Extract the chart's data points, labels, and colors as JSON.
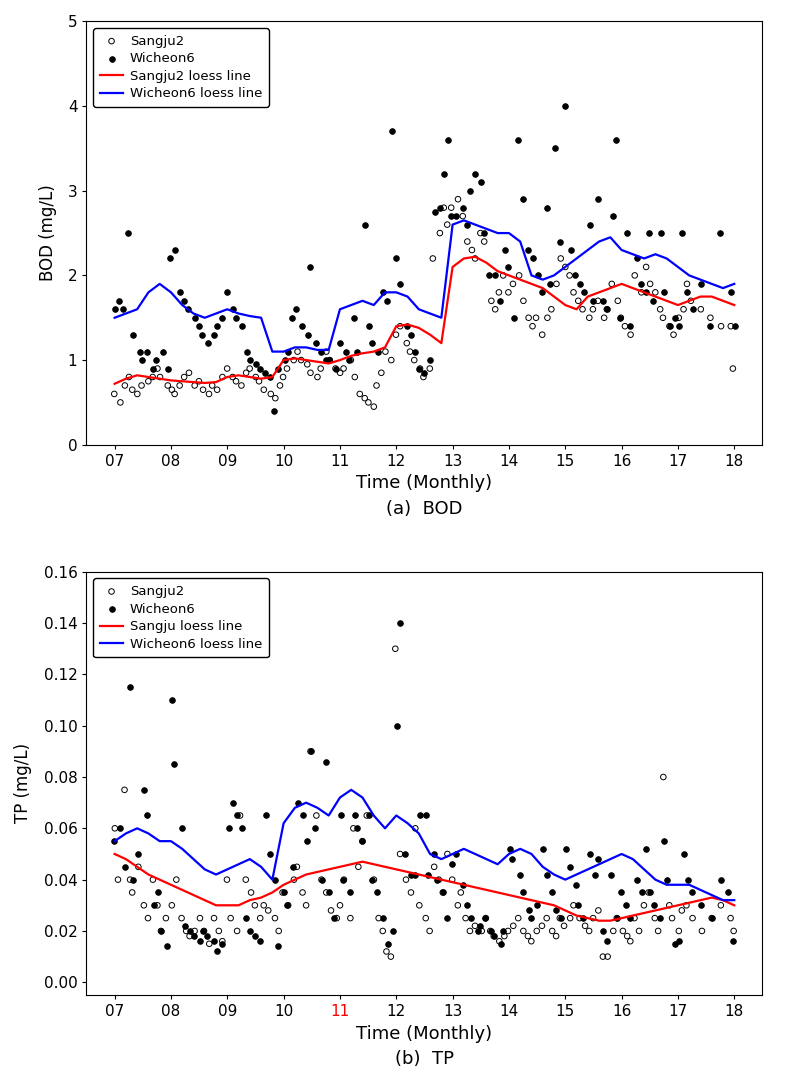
{
  "bod_sangju2_x": [
    7.0,
    7.08,
    7.17,
    7.25,
    7.33,
    7.42,
    7.5,
    7.58,
    7.67,
    7.75,
    7.83,
    7.92,
    8.0,
    8.08,
    8.17,
    8.25,
    8.33,
    8.42,
    8.5,
    8.58,
    8.67,
    8.75,
    8.83,
    8.92,
    9.0,
    9.08,
    9.17,
    9.25,
    9.33,
    9.42,
    9.5,
    9.58,
    9.67,
    9.75,
    9.83,
    9.92,
    10.0,
    10.08,
    10.17,
    10.25,
    10.33,
    10.42,
    10.5,
    10.58,
    10.67,
    10.75,
    10.83,
    10.92,
    11.0,
    11.08,
    11.17,
    11.25,
    11.33,
    11.42,
    11.5,
    11.58,
    11.67,
    11.75,
    11.83,
    11.92,
    12.0,
    12.08,
    12.17,
    12.25,
    12.33,
    12.42,
    12.5,
    12.58,
    12.67,
    12.75,
    12.83,
    12.92,
    13.0,
    13.08,
    13.17,
    13.25,
    13.33,
    13.42,
    13.5,
    13.58,
    13.67,
    13.75,
    13.83,
    13.92,
    14.0,
    14.08,
    14.17,
    14.25,
    14.33,
    14.42,
    14.5,
    14.58,
    14.67,
    14.75,
    14.83,
    14.92,
    15.0,
    15.08,
    15.17,
    15.25,
    15.33,
    15.42,
    15.5,
    15.58,
    15.67,
    15.75,
    15.83,
    15.92,
    16.0,
    16.08,
    16.17,
    16.25,
    16.33,
    16.42,
    16.5,
    16.58,
    16.67,
    16.75,
    16.83,
    16.92,
    17.0,
    17.08,
    17.17,
    17.25,
    17.42,
    17.58,
    17.75,
    17.92,
    18.0
  ],
  "bod_sangju2_y": [
    0.6,
    0.5,
    0.7,
    0.8,
    0.65,
    0.6,
    0.7,
    0.75,
    0.8,
    0.9,
    0.8,
    0.7,
    0.65,
    0.6,
    0.7,
    0.8,
    0.85,
    0.7,
    0.75,
    0.65,
    0.6,
    0.7,
    0.65,
    0.8,
    0.9,
    0.8,
    0.75,
    0.7,
    0.85,
    0.9,
    0.8,
    0.75,
    0.65,
    0.6,
    0.55,
    0.7,
    0.8,
    0.9,
    1.0,
    1.1,
    1.0,
    0.95,
    0.85,
    0.8,
    0.9,
    1.1,
    1.0,
    0.9,
    0.85,
    0.9,
    1.0,
    0.8,
    0.6,
    0.55,
    0.5,
    0.45,
    0.7,
    0.85,
    1.1,
    1.0,
    1.3,
    1.4,
    1.2,
    1.1,
    1.0,
    0.9,
    0.8,
    0.9,
    2.2,
    2.5,
    2.8,
    2.6,
    2.8,
    2.9,
    2.7,
    2.4,
    2.3,
    2.2,
    2.5,
    2.4,
    1.7,
    1.6,
    1.8,
    2.0,
    1.8,
    1.9,
    2.0,
    1.7,
    1.5,
    1.4,
    1.5,
    1.3,
    1.5,
    1.6,
    1.9,
    2.2,
    2.1,
    2.0,
    1.8,
    1.7,
    1.6,
    1.5,
    1.6,
    1.7,
    1.5,
    1.6,
    1.9,
    1.7,
    1.5,
    1.4,
    1.3,
    2.0,
    1.8,
    2.1,
    1.9,
    1.8,
    1.6,
    1.5,
    1.4,
    1.3,
    1.5,
    1.6,
    1.9,
    1.7,
    1.6,
    1.5,
    1.4,
    1.4,
    0.9
  ],
  "bod_wicheon6_x": [
    7.0,
    7.08,
    7.17,
    7.25,
    7.33,
    7.42,
    7.5,
    7.58,
    7.67,
    7.75,
    7.83,
    7.92,
    8.0,
    8.08,
    8.17,
    8.25,
    8.33,
    8.42,
    8.5,
    8.58,
    8.67,
    8.75,
    8.83,
    8.92,
    9.0,
    9.08,
    9.17,
    9.25,
    9.33,
    9.42,
    9.5,
    9.58,
    9.67,
    9.75,
    9.83,
    9.92,
    10.0,
    10.08,
    10.17,
    10.25,
    10.33,
    10.42,
    10.5,
    10.58,
    10.67,
    10.75,
    10.83,
    10.92,
    11.0,
    11.08,
    11.17,
    11.25,
    11.33,
    11.42,
    11.5,
    11.58,
    11.67,
    11.75,
    11.83,
    11.92,
    12.0,
    12.08,
    12.17,
    12.25,
    12.33,
    12.42,
    12.5,
    12.58,
    12.67,
    12.75,
    12.83,
    12.92,
    13.0,
    13.08,
    13.17,
    13.25,
    13.33,
    13.42,
    13.5,
    13.58,
    13.67,
    13.75,
    13.83,
    13.92,
    14.0,
    14.08,
    14.17,
    14.25,
    14.33,
    14.42,
    14.5,
    14.58,
    14.67,
    14.75,
    14.83,
    14.92,
    15.0,
    15.08,
    15.17,
    15.25,
    15.33,
    15.42,
    15.5,
    15.58,
    15.67,
    15.75,
    15.83,
    15.92,
    16.0,
    16.08,
    16.17,
    16.25,
    16.33,
    16.42,
    16.5,
    16.58,
    16.67,
    16.75,
    16.83,
    16.92,
    17.0,
    17.08,
    17.17,
    17.25,
    17.42,
    17.58,
    17.75,
    17.92,
    18.0
  ],
  "bod_wicheon6_y": [
    1.6,
    1.7,
    1.6,
    2.5,
    1.3,
    1.1,
    1.0,
    1.1,
    0.9,
    1.0,
    1.1,
    0.9,
    2.2,
    2.3,
    1.8,
    1.7,
    1.6,
    1.5,
    1.4,
    1.3,
    1.2,
    1.3,
    1.4,
    1.5,
    1.8,
    1.6,
    1.5,
    1.4,
    1.1,
    1.0,
    0.95,
    0.9,
    0.85,
    0.8,
    0.4,
    0.9,
    1.0,
    1.1,
    1.5,
    1.6,
    1.4,
    1.3,
    2.1,
    1.2,
    1.1,
    1.0,
    1.0,
    0.9,
    1.2,
    1.1,
    1.0,
    1.5,
    1.1,
    2.6,
    1.4,
    1.2,
    1.1,
    1.8,
    1.7,
    3.7,
    2.2,
    1.9,
    1.4,
    1.3,
    1.1,
    0.9,
    0.85,
    1.0,
    2.75,
    2.8,
    3.2,
    3.6,
    2.7,
    2.7,
    2.8,
    2.6,
    3.0,
    3.2,
    3.1,
    2.5,
    2.0,
    2.0,
    1.7,
    2.3,
    2.1,
    1.5,
    3.6,
    2.9,
    2.3,
    2.2,
    2.0,
    1.8,
    2.8,
    1.9,
    3.5,
    2.4,
    4.0,
    2.3,
    2.0,
    1.9,
    1.8,
    2.6,
    1.7,
    2.9,
    1.7,
    1.6,
    2.7,
    3.6,
    1.5,
    2.5,
    1.4,
    2.2,
    1.9,
    1.8,
    2.5,
    1.7,
    2.5,
    1.8,
    1.4,
    1.5,
    1.4,
    2.5,
    1.8,
    1.6,
    1.9,
    1.4,
    2.5,
    1.8,
    1.4
  ],
  "tp_sangju2_x": [
    7.0,
    7.08,
    7.17,
    7.25,
    7.33,
    7.42,
    7.5,
    7.58,
    7.67,
    7.75,
    7.83,
    7.92,
    8.0,
    8.08,
    8.17,
    8.25,
    8.33,
    8.42,
    8.5,
    8.58,
    8.67,
    8.75,
    8.83,
    8.92,
    9.0,
    9.08,
    9.17,
    9.25,
    9.33,
    9.42,
    9.5,
    9.58,
    9.67,
    9.75,
    9.83,
    9.92,
    10.0,
    10.08,
    10.17,
    10.25,
    10.33,
    10.42,
    10.5,
    10.58,
    10.67,
    10.75,
    10.83,
    10.92,
    11.0,
    11.08,
    11.17,
    11.25,
    11.33,
    11.42,
    11.5,
    11.58,
    11.67,
    11.75,
    11.83,
    11.92,
    12.0,
    12.08,
    12.17,
    12.25,
    12.33,
    12.42,
    12.5,
    12.58,
    12.67,
    12.75,
    12.83,
    12.92,
    13.0,
    13.08,
    13.17,
    13.25,
    13.33,
    13.42,
    13.5,
    13.58,
    13.67,
    13.75,
    13.83,
    13.92,
    14.0,
    14.08,
    14.17,
    14.25,
    14.33,
    14.42,
    14.5,
    14.58,
    14.67,
    14.75,
    14.83,
    14.92,
    15.0,
    15.08,
    15.17,
    15.25,
    15.33,
    15.42,
    15.5,
    15.58,
    15.67,
    15.75,
    15.83,
    15.92,
    16.0,
    16.08,
    16.17,
    16.25,
    16.33,
    16.42,
    16.5,
    16.58,
    16.67,
    16.75,
    16.83,
    16.92,
    17.0,
    17.08,
    17.17,
    17.25,
    17.42,
    17.58,
    17.75,
    17.92,
    18.0
  ],
  "tp_sangju2_y": [
    0.06,
    0.04,
    0.075,
    0.04,
    0.035,
    0.045,
    0.03,
    0.025,
    0.04,
    0.03,
    0.02,
    0.025,
    0.03,
    0.04,
    0.025,
    0.02,
    0.018,
    0.02,
    0.025,
    0.02,
    0.015,
    0.025,
    0.02,
    0.016,
    0.04,
    0.025,
    0.02,
    0.065,
    0.04,
    0.035,
    0.03,
    0.025,
    0.03,
    0.028,
    0.025,
    0.02,
    0.035,
    0.03,
    0.04,
    0.045,
    0.035,
    0.03,
    0.09,
    0.065,
    0.04,
    0.035,
    0.028,
    0.025,
    0.03,
    0.04,
    0.025,
    0.06,
    0.045,
    0.055,
    0.065,
    0.04,
    0.025,
    0.02,
    0.012,
    0.01,
    0.13,
    0.05,
    0.04,
    0.035,
    0.06,
    0.03,
    0.025,
    0.02,
    0.045,
    0.04,
    0.035,
    0.05,
    0.04,
    0.03,
    0.035,
    0.025,
    0.02,
    0.022,
    0.02,
    0.025,
    0.02,
    0.018,
    0.016,
    0.018,
    0.02,
    0.022,
    0.025,
    0.02,
    0.018,
    0.016,
    0.02,
    0.022,
    0.025,
    0.02,
    0.018,
    0.025,
    0.022,
    0.025,
    0.03,
    0.025,
    0.022,
    0.02,
    0.025,
    0.028,
    0.01,
    0.01,
    0.02,
    0.025,
    0.02,
    0.018,
    0.016,
    0.025,
    0.02,
    0.03,
    0.035,
    0.025,
    0.02,
    0.08,
    0.03,
    0.025,
    0.02,
    0.028,
    0.03,
    0.025,
    0.02,
    0.025,
    0.03,
    0.025,
    0.02
  ],
  "tp_wicheon6_x": [
    7.0,
    7.08,
    7.17,
    7.25,
    7.33,
    7.42,
    7.5,
    7.58,
    7.67,
    7.75,
    7.83,
    7.92,
    8.0,
    8.08,
    8.17,
    8.25,
    8.33,
    8.42,
    8.5,
    8.58,
    8.67,
    8.75,
    8.83,
    8.92,
    9.0,
    9.08,
    9.17,
    9.25,
    9.33,
    9.42,
    9.5,
    9.58,
    9.67,
    9.75,
    9.83,
    9.92,
    10.0,
    10.08,
    10.17,
    10.25,
    10.33,
    10.42,
    10.5,
    10.58,
    10.67,
    10.75,
    10.83,
    10.92,
    11.0,
    11.08,
    11.17,
    11.25,
    11.33,
    11.42,
    11.5,
    11.58,
    11.67,
    11.75,
    11.83,
    11.92,
    12.0,
    12.08,
    12.17,
    12.25,
    12.33,
    12.42,
    12.5,
    12.58,
    12.67,
    12.75,
    12.83,
    12.92,
    13.0,
    13.08,
    13.17,
    13.25,
    13.33,
    13.42,
    13.5,
    13.58,
    13.67,
    13.75,
    13.83,
    13.92,
    14.0,
    14.08,
    14.17,
    14.25,
    14.33,
    14.42,
    14.5,
    14.58,
    14.67,
    14.75,
    14.83,
    14.92,
    15.0,
    15.08,
    15.17,
    15.25,
    15.33,
    15.42,
    15.5,
    15.58,
    15.67,
    15.75,
    15.83,
    15.92,
    16.0,
    16.08,
    16.17,
    16.25,
    16.33,
    16.42,
    16.5,
    16.58,
    16.67,
    16.75,
    16.83,
    16.92,
    17.0,
    17.08,
    17.17,
    17.25,
    17.42,
    17.58,
    17.75,
    17.92,
    18.0
  ],
  "tp_wicheon6_y": [
    0.055,
    0.06,
    0.045,
    0.115,
    0.04,
    0.05,
    0.075,
    0.065,
    0.03,
    0.035,
    0.02,
    0.014,
    0.11,
    0.085,
    0.06,
    0.022,
    0.02,
    0.018,
    0.016,
    0.02,
    0.018,
    0.016,
    0.012,
    0.015,
    0.06,
    0.07,
    0.065,
    0.06,
    0.025,
    0.02,
    0.018,
    0.016,
    0.065,
    0.05,
    0.04,
    0.014,
    0.035,
    0.03,
    0.045,
    0.07,
    0.065,
    0.055,
    0.09,
    0.06,
    0.04,
    0.086,
    0.035,
    0.025,
    0.065,
    0.04,
    0.035,
    0.065,
    0.06,
    0.055,
    0.065,
    0.04,
    0.035,
    0.025,
    0.015,
    0.02,
    0.1,
    0.14,
    0.05,
    0.042,
    0.042,
    0.065,
    0.065,
    0.042,
    0.05,
    0.04,
    0.035,
    0.025,
    0.046,
    0.05,
    0.038,
    0.03,
    0.025,
    0.02,
    0.022,
    0.025,
    0.02,
    0.018,
    0.015,
    0.02,
    0.052,
    0.048,
    0.042,
    0.035,
    0.028,
    0.025,
    0.03,
    0.052,
    0.042,
    0.035,
    0.028,
    0.025,
    0.052,
    0.045,
    0.038,
    0.03,
    0.025,
    0.05,
    0.042,
    0.048,
    0.02,
    0.016,
    0.042,
    0.025,
    0.035,
    0.03,
    0.025,
    0.04,
    0.035,
    0.052,
    0.035,
    0.03,
    0.025,
    0.055,
    0.04,
    0.015,
    0.016,
    0.05,
    0.04,
    0.035,
    0.03,
    0.025,
    0.04,
    0.035,
    0.016
  ],
  "bod_loess_sangju2_x": [
    7.0,
    7.2,
    7.4,
    7.6,
    7.8,
    8.0,
    8.2,
    8.4,
    8.6,
    8.8,
    9.0,
    9.2,
    9.4,
    9.6,
    9.8,
    10.0,
    10.2,
    10.4,
    10.6,
    10.8,
    11.0,
    11.2,
    11.4,
    11.6,
    11.8,
    12.0,
    12.2,
    12.4,
    12.6,
    12.8,
    13.0,
    13.2,
    13.4,
    13.6,
    13.8,
    14.0,
    14.2,
    14.4,
    14.6,
    14.8,
    15.0,
    15.2,
    15.4,
    15.6,
    15.8,
    16.0,
    16.2,
    16.4,
    16.6,
    16.8,
    17.0,
    17.2,
    17.4,
    17.6,
    17.8,
    18.0
  ],
  "bod_loess_sangju2_y": [
    0.72,
    0.78,
    0.82,
    0.8,
    0.78,
    0.76,
    0.75,
    0.74,
    0.73,
    0.74,
    0.8,
    0.82,
    0.8,
    0.78,
    0.8,
    1.0,
    1.02,
    1.0,
    0.98,
    0.96,
    1.0,
    1.05,
    1.08,
    1.1,
    1.15,
    1.4,
    1.42,
    1.38,
    1.3,
    1.2,
    2.1,
    2.2,
    2.22,
    2.15,
    2.05,
    2.0,
    1.95,
    1.9,
    1.85,
    1.75,
    1.65,
    1.6,
    1.75,
    1.8,
    1.85,
    1.9,
    1.85,
    1.8,
    1.75,
    1.7,
    1.65,
    1.7,
    1.75,
    1.75,
    1.7,
    1.65
  ],
  "bod_loess_wicheon6_x": [
    7.0,
    7.2,
    7.4,
    7.6,
    7.8,
    8.0,
    8.2,
    8.4,
    8.6,
    8.8,
    9.0,
    9.2,
    9.4,
    9.6,
    9.8,
    10.0,
    10.2,
    10.4,
    10.6,
    10.8,
    11.0,
    11.2,
    11.4,
    11.6,
    11.8,
    12.0,
    12.2,
    12.4,
    12.6,
    12.8,
    13.0,
    13.2,
    13.4,
    13.6,
    13.8,
    14.0,
    14.2,
    14.4,
    14.6,
    14.8,
    15.0,
    15.2,
    15.4,
    15.6,
    15.8,
    16.0,
    16.2,
    16.4,
    16.6,
    16.8,
    17.0,
    17.2,
    17.4,
    17.6,
    17.8,
    18.0
  ],
  "bod_loess_wicheon6_y": [
    1.5,
    1.55,
    1.6,
    1.8,
    1.9,
    1.8,
    1.65,
    1.55,
    1.5,
    1.55,
    1.6,
    1.55,
    1.52,
    1.5,
    1.1,
    1.1,
    1.15,
    1.15,
    1.12,
    1.12,
    1.6,
    1.65,
    1.7,
    1.65,
    1.8,
    1.8,
    1.75,
    1.6,
    1.55,
    1.5,
    2.6,
    2.65,
    2.6,
    2.55,
    2.5,
    2.5,
    2.4,
    2.0,
    1.95,
    2.0,
    2.1,
    2.2,
    2.3,
    2.4,
    2.45,
    2.3,
    2.25,
    2.2,
    2.25,
    2.2,
    2.1,
    2.0,
    1.95,
    1.9,
    1.85,
    1.9
  ],
  "tp_loess_sangju2_x": [
    7.0,
    7.2,
    7.4,
    7.6,
    7.8,
    8.0,
    8.2,
    8.4,
    8.6,
    8.8,
    9.0,
    9.2,
    9.4,
    9.6,
    9.8,
    10.0,
    10.2,
    10.4,
    10.6,
    10.8,
    11.0,
    11.2,
    11.4,
    11.6,
    11.8,
    12.0,
    12.2,
    12.4,
    12.6,
    12.8,
    13.0,
    13.2,
    13.4,
    13.6,
    13.8,
    14.0,
    14.2,
    14.4,
    14.6,
    14.8,
    15.0,
    15.2,
    15.4,
    15.6,
    15.8,
    16.0,
    16.2,
    16.4,
    16.6,
    16.8,
    17.0,
    17.2,
    17.4,
    17.6,
    17.8,
    18.0
  ],
  "tp_loess_sangju2_y": [
    0.05,
    0.048,
    0.045,
    0.042,
    0.04,
    0.038,
    0.036,
    0.034,
    0.032,
    0.03,
    0.03,
    0.03,
    0.032,
    0.033,
    0.035,
    0.038,
    0.04,
    0.042,
    0.043,
    0.044,
    0.045,
    0.046,
    0.047,
    0.046,
    0.045,
    0.044,
    0.043,
    0.042,
    0.041,
    0.04,
    0.039,
    0.038,
    0.037,
    0.036,
    0.035,
    0.034,
    0.033,
    0.032,
    0.031,
    0.03,
    0.028,
    0.026,
    0.025,
    0.024,
    0.024,
    0.025,
    0.026,
    0.027,
    0.028,
    0.029,
    0.03,
    0.031,
    0.032,
    0.033,
    0.032,
    0.03
  ],
  "tp_loess_wicheon6_x": [
    7.0,
    7.2,
    7.4,
    7.6,
    7.8,
    8.0,
    8.2,
    8.4,
    8.6,
    8.8,
    9.0,
    9.2,
    9.4,
    9.6,
    9.8,
    10.0,
    10.2,
    10.4,
    10.6,
    10.8,
    11.0,
    11.2,
    11.4,
    11.6,
    11.8,
    12.0,
    12.2,
    12.4,
    12.6,
    12.8,
    13.0,
    13.2,
    13.4,
    13.6,
    13.8,
    14.0,
    14.2,
    14.4,
    14.6,
    14.8,
    15.0,
    15.2,
    15.4,
    15.6,
    15.8,
    16.0,
    16.2,
    16.4,
    16.6,
    16.8,
    17.0,
    17.2,
    17.4,
    17.6,
    17.8,
    18.0
  ],
  "tp_loess_wicheon6_y": [
    0.055,
    0.058,
    0.06,
    0.058,
    0.055,
    0.055,
    0.052,
    0.048,
    0.044,
    0.042,
    0.044,
    0.046,
    0.048,
    0.045,
    0.04,
    0.062,
    0.068,
    0.07,
    0.068,
    0.065,
    0.072,
    0.075,
    0.072,
    0.065,
    0.06,
    0.065,
    0.062,
    0.058,
    0.05,
    0.048,
    0.05,
    0.052,
    0.05,
    0.048,
    0.046,
    0.05,
    0.052,
    0.05,
    0.045,
    0.042,
    0.04,
    0.042,
    0.044,
    0.046,
    0.048,
    0.05,
    0.048,
    0.044,
    0.04,
    0.038,
    0.038,
    0.038,
    0.036,
    0.034,
    0.032,
    0.032
  ],
  "xlim": [
    6.5,
    18.5
  ],
  "xticks": [
    7,
    8,
    9,
    10,
    11,
    12,
    13,
    14,
    15,
    16,
    17,
    18
  ],
  "bod_ylim": [
    0,
    5
  ],
  "bod_yticks": [
    0,
    1,
    2,
    3,
    4,
    5
  ],
  "tp_ylim": [
    -0.005,
    0.16
  ],
  "tp_yticks": [
    0.0,
    0.02,
    0.04,
    0.06,
    0.08,
    0.1,
    0.12,
    0.14,
    0.16
  ],
  "sangju2_color": "#000000",
  "wicheon6_color": "#000000",
  "loess_sangju2_color": "#ff0000",
  "loess_wicheon6_color": "#0000ff",
  "xlabel": "Time (Monthly)",
  "bod_ylabel": "BOD (mg/L)",
  "tp_ylabel": "TP (mg/L)",
  "caption_a": "(a)  BOD",
  "caption_b": "(b)  TP",
  "legend_bod_loc": "upper left",
  "legend_tp_loc": "upper left",
  "tp_xtick11_color": "red"
}
